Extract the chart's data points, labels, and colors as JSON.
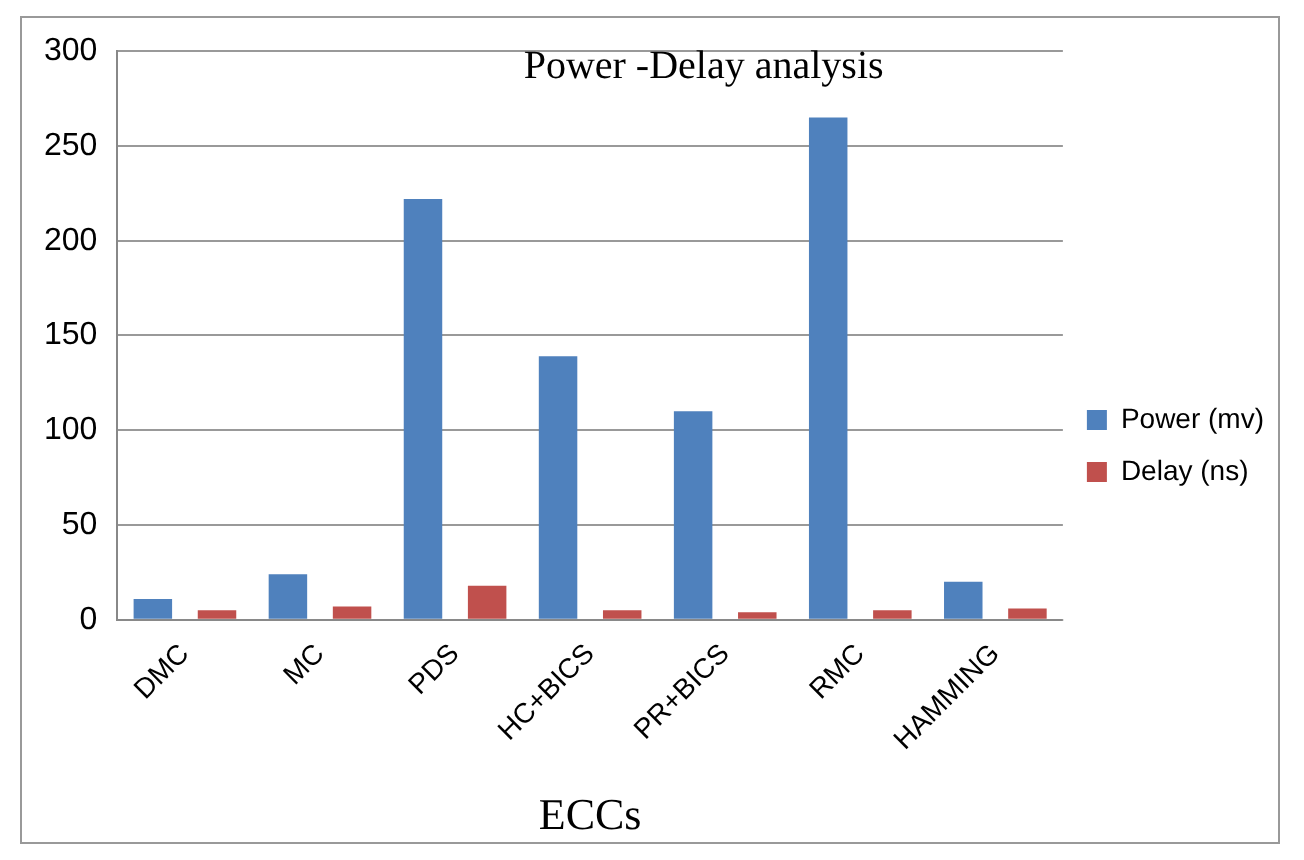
{
  "chart_data": {
    "type": "bar",
    "title": "Power -Delay analysis",
    "xlabel": "ECCs",
    "categories": [
      "DMC",
      "MC",
      "PDS",
      "HC+BICS",
      "PR+BICS",
      "RMC",
      "HAMMING"
    ],
    "series": [
      {
        "name": "Power (mv)",
        "color": "#4f81bd",
        "values": [
          11,
          24,
          222,
          139,
          110,
          265,
          20
        ]
      },
      {
        "name": "Delay (ns)",
        "color": "#c0504d",
        "values": [
          5,
          7,
          18,
          5,
          4,
          5,
          6
        ]
      }
    ],
    "ylim": [
      0,
      300
    ],
    "yticks": [
      0,
      50,
      100,
      150,
      200,
      250,
      300
    ],
    "grid": "y",
    "legend": "right"
  }
}
